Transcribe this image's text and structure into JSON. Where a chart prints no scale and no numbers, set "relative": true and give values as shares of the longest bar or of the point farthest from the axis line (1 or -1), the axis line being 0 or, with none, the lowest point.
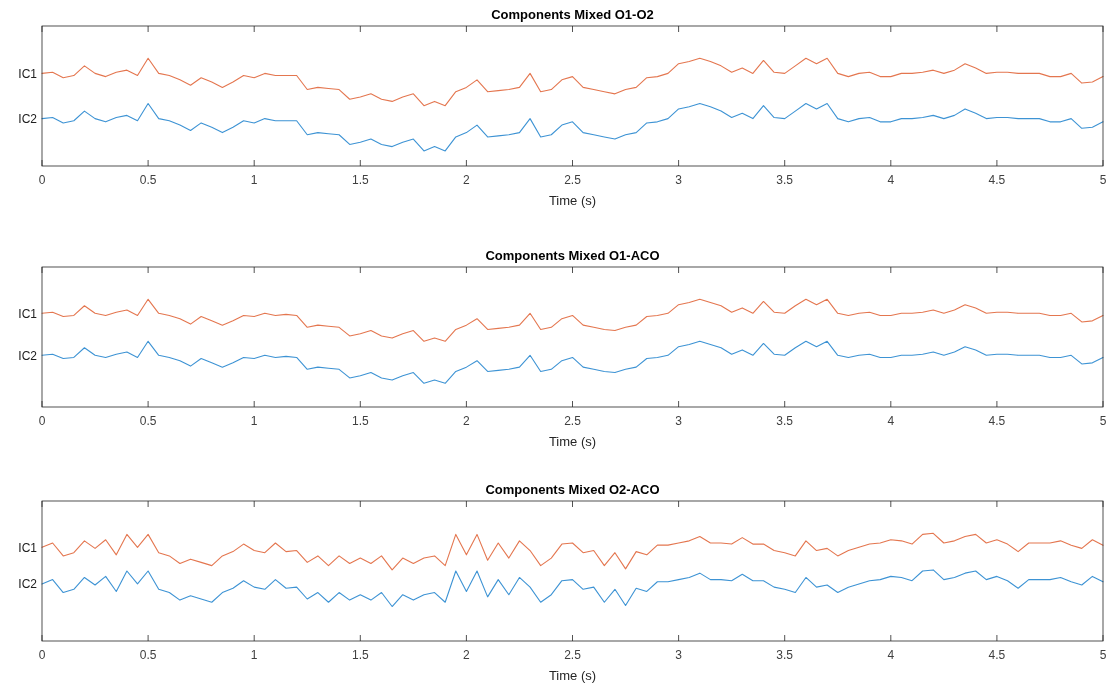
{
  "chart_data": [
    {
      "type": "line",
      "title": "Components Mixed O1-O2",
      "xlabel": "Time (s)",
      "xlim": [
        0,
        5
      ],
      "xticks": [
        0,
        0.5,
        1,
        1.5,
        2,
        2.5,
        3,
        3.5,
        4,
        4.5,
        5
      ],
      "relative": true,
      "x": [
        0,
        0.05,
        0.1,
        0.15,
        0.2,
        0.25,
        0.3,
        0.35,
        0.4,
        0.45,
        0.5,
        0.55,
        0.6,
        0.65,
        0.7,
        0.75,
        0.8,
        0.85,
        0.9,
        0.95,
        1,
        1.05,
        1.1,
        1.15,
        1.2,
        1.25,
        1.3,
        1.35,
        1.4,
        1.45,
        1.5,
        1.55,
        1.6,
        1.65,
        1.7,
        1.75,
        1.8,
        1.85,
        1.9,
        1.95,
        2,
        2.05,
        2.1,
        2.15,
        2.2,
        2.25,
        2.3,
        2.35,
        2.4,
        2.45,
        2.5,
        2.55,
        2.6,
        2.65,
        2.7,
        2.75,
        2.8,
        2.85,
        2.9,
        2.95,
        3,
        3.05,
        3.1,
        3.15,
        3.2,
        3.25,
        3.3,
        3.35,
        3.4,
        3.45,
        3.5,
        3.55,
        3.6,
        3.65,
        3.7,
        3.75,
        3.8,
        3.85,
        3.9,
        3.95,
        4,
        4.05,
        4.1,
        4.15,
        4.2,
        4.25,
        4.3,
        4.35,
        4.4,
        4.45,
        4.5,
        4.55,
        4.6,
        4.65,
        4.7,
        4.75,
        4.8,
        4.85,
        4.9,
        4.95,
        5
      ],
      "series": [
        {
          "name": "IC1",
          "color": "#e4764f",
          "values": [
            0.86,
            0.87,
            0.82,
            0.84,
            0.93,
            0.86,
            0.83,
            0.87,
            0.89,
            0.84,
            1.0,
            0.86,
            0.84,
            0.8,
            0.75,
            0.82,
            0.78,
            0.73,
            0.78,
            0.84,
            0.82,
            0.86,
            0.84,
            0.84,
            0.84,
            0.71,
            0.73,
            0.72,
            0.71,
            0.62,
            0.64,
            0.67,
            0.62,
            0.6,
            0.64,
            0.67,
            0.56,
            0.6,
            0.56,
            0.69,
            0.73,
            0.8,
            0.69,
            0.7,
            0.71,
            0.73,
            0.86,
            0.69,
            0.71,
            0.8,
            0.83,
            0.73,
            0.71,
            0.69,
            0.67,
            0.71,
            0.73,
            0.82,
            0.83,
            0.86,
            0.95,
            0.97,
            1.0,
            0.97,
            0.93,
            0.87,
            0.91,
            0.86,
            0.98,
            0.87,
            0.86,
            0.93,
            1.0,
            0.95,
            1.0,
            0.86,
            0.83,
            0.86,
            0.87,
            0.83,
            0.83,
            0.86,
            0.86,
            0.87,
            0.89,
            0.86,
            0.89,
            0.95,
            0.91,
            0.86,
            0.87,
            0.87,
            0.86,
            0.86,
            0.86,
            0.83,
            0.83,
            0.86,
            0.77,
            0.78,
            0.83
          ]
        },
        {
          "name": "IC2",
          "color": "#3d93d4",
          "values": [
            0.44,
            0.45,
            0.4,
            0.42,
            0.51,
            0.44,
            0.41,
            0.45,
            0.47,
            0.42,
            0.58,
            0.44,
            0.42,
            0.38,
            0.33,
            0.4,
            0.36,
            0.31,
            0.36,
            0.42,
            0.4,
            0.44,
            0.42,
            0.42,
            0.42,
            0.29,
            0.31,
            0.3,
            0.29,
            0.2,
            0.22,
            0.25,
            0.2,
            0.18,
            0.22,
            0.25,
            0.14,
            0.18,
            0.14,
            0.27,
            0.31,
            0.38,
            0.27,
            0.28,
            0.29,
            0.31,
            0.44,
            0.27,
            0.29,
            0.38,
            0.41,
            0.31,
            0.29,
            0.27,
            0.25,
            0.29,
            0.31,
            0.4,
            0.41,
            0.44,
            0.53,
            0.55,
            0.58,
            0.55,
            0.51,
            0.45,
            0.49,
            0.44,
            0.56,
            0.45,
            0.44,
            0.51,
            0.58,
            0.53,
            0.58,
            0.44,
            0.41,
            0.44,
            0.45,
            0.41,
            0.41,
            0.44,
            0.44,
            0.45,
            0.47,
            0.44,
            0.47,
            0.53,
            0.49,
            0.44,
            0.45,
            0.45,
            0.44,
            0.44,
            0.44,
            0.41,
            0.41,
            0.44,
            0.35,
            0.36,
            0.41
          ]
        }
      ]
    },
    {
      "type": "line",
      "title": "Components Mixed O1-ACO",
      "xlabel": "Time (s)",
      "xlim": [
        0,
        5
      ],
      "xticks": [
        0,
        0.5,
        1,
        1.5,
        2,
        2.5,
        3,
        3.5,
        4,
        4.5,
        5
      ],
      "relative": true,
      "x": [
        0,
        0.05,
        0.1,
        0.15,
        0.2,
        0.25,
        0.3,
        0.35,
        0.4,
        0.45,
        0.5,
        0.55,
        0.6,
        0.65,
        0.7,
        0.75,
        0.8,
        0.85,
        0.9,
        0.95,
        1,
        1.05,
        1.1,
        1.15,
        1.2,
        1.25,
        1.3,
        1.35,
        1.4,
        1.45,
        1.5,
        1.55,
        1.6,
        1.65,
        1.7,
        1.75,
        1.8,
        1.85,
        1.9,
        1.95,
        2,
        2.05,
        2.1,
        2.15,
        2.2,
        2.25,
        2.3,
        2.35,
        2.4,
        2.45,
        2.5,
        2.55,
        2.6,
        2.65,
        2.7,
        2.75,
        2.8,
        2.85,
        2.9,
        2.95,
        3,
        3.05,
        3.1,
        3.15,
        3.2,
        3.25,
        3.3,
        3.35,
        3.4,
        3.45,
        3.5,
        3.55,
        3.6,
        3.65,
        3.7,
        3.75,
        3.8,
        3.85,
        3.9,
        3.95,
        4,
        4.05,
        4.1,
        4.15,
        4.2,
        4.25,
        4.3,
        4.35,
        4.4,
        4.45,
        4.5,
        4.55,
        4.6,
        4.65,
        4.7,
        4.75,
        4.8,
        4.85,
        4.9,
        4.95,
        5
      ],
      "series": [
        {
          "name": "IC1",
          "color": "#e4764f",
          "values": [
            0.87,
            0.88,
            0.84,
            0.85,
            0.94,
            0.87,
            0.85,
            0.88,
            0.9,
            0.85,
            1.0,
            0.87,
            0.85,
            0.82,
            0.77,
            0.84,
            0.8,
            0.76,
            0.8,
            0.85,
            0.84,
            0.87,
            0.85,
            0.86,
            0.85,
            0.74,
            0.76,
            0.75,
            0.74,
            0.66,
            0.68,
            0.71,
            0.66,
            0.64,
            0.68,
            0.71,
            0.61,
            0.64,
            0.61,
            0.72,
            0.76,
            0.82,
            0.72,
            0.73,
            0.74,
            0.76,
            0.87,
            0.72,
            0.74,
            0.82,
            0.85,
            0.76,
            0.74,
            0.72,
            0.71,
            0.74,
            0.76,
            0.84,
            0.85,
            0.87,
            0.95,
            0.97,
            1.0,
            0.97,
            0.94,
            0.88,
            0.92,
            0.87,
            0.98,
            0.88,
            0.87,
            0.94,
            1.0,
            0.95,
            1.0,
            0.87,
            0.85,
            0.87,
            0.88,
            0.85,
            0.85,
            0.87,
            0.87,
            0.88,
            0.9,
            0.87,
            0.9,
            0.95,
            0.92,
            0.87,
            0.88,
            0.88,
            0.87,
            0.87,
            0.87,
            0.85,
            0.85,
            0.87,
            0.79,
            0.8,
            0.85
          ]
        },
        {
          "name": "IC2",
          "color": "#3d93d4",
          "values": [
            0.48,
            0.49,
            0.45,
            0.46,
            0.55,
            0.48,
            0.46,
            0.49,
            0.51,
            0.46,
            0.61,
            0.48,
            0.46,
            0.43,
            0.38,
            0.45,
            0.41,
            0.37,
            0.41,
            0.46,
            0.45,
            0.48,
            0.46,
            0.47,
            0.46,
            0.35,
            0.37,
            0.36,
            0.35,
            0.27,
            0.29,
            0.32,
            0.27,
            0.25,
            0.29,
            0.32,
            0.22,
            0.25,
            0.22,
            0.33,
            0.37,
            0.43,
            0.33,
            0.34,
            0.35,
            0.37,
            0.48,
            0.33,
            0.35,
            0.43,
            0.46,
            0.37,
            0.35,
            0.33,
            0.32,
            0.35,
            0.37,
            0.45,
            0.46,
            0.48,
            0.56,
            0.58,
            0.61,
            0.58,
            0.55,
            0.49,
            0.53,
            0.48,
            0.59,
            0.49,
            0.48,
            0.55,
            0.61,
            0.56,
            0.61,
            0.48,
            0.46,
            0.48,
            0.49,
            0.46,
            0.46,
            0.48,
            0.48,
            0.49,
            0.51,
            0.48,
            0.51,
            0.56,
            0.53,
            0.48,
            0.49,
            0.49,
            0.48,
            0.48,
            0.48,
            0.46,
            0.46,
            0.48,
            0.4,
            0.41,
            0.46
          ]
        }
      ]
    },
    {
      "type": "line",
      "title": "Components Mixed O2-ACO",
      "xlabel": "Time (s)",
      "xlim": [
        0,
        5
      ],
      "xticks": [
        0,
        0.5,
        1,
        1.5,
        2,
        2.5,
        3,
        3.5,
        4,
        4.5,
        5
      ],
      "relative": true,
      "x": [
        0,
        0.05,
        0.1,
        0.15,
        0.2,
        0.25,
        0.3,
        0.35,
        0.4,
        0.45,
        0.5,
        0.55,
        0.6,
        0.65,
        0.7,
        0.75,
        0.8,
        0.85,
        0.9,
        0.95,
        1,
        1.05,
        1.1,
        1.15,
        1.2,
        1.25,
        1.3,
        1.35,
        1.4,
        1.45,
        1.5,
        1.55,
        1.6,
        1.65,
        1.7,
        1.75,
        1.8,
        1.85,
        1.9,
        1.95,
        2,
        2.05,
        2.1,
        2.15,
        2.2,
        2.25,
        2.3,
        2.35,
        2.4,
        2.45,
        2.5,
        2.55,
        2.6,
        2.65,
        2.7,
        2.75,
        2.8,
        2.85,
        2.9,
        2.95,
        3,
        3.05,
        3.1,
        3.15,
        3.2,
        3.25,
        3.3,
        3.35,
        3.4,
        3.45,
        3.5,
        3.55,
        3.6,
        3.65,
        3.7,
        3.75,
        3.8,
        3.85,
        3.9,
        3.95,
        4,
        4.05,
        4.1,
        4.15,
        4.2,
        4.25,
        4.3,
        4.35,
        4.4,
        4.45,
        4.5,
        4.55,
        4.6,
        4.65,
        4.7,
        4.75,
        4.8,
        4.85,
        4.9,
        4.95,
        5
      ],
      "series": [
        {
          "name": "IC1",
          "color": "#e4764f",
          "values": [
            0.87,
            0.91,
            0.79,
            0.82,
            0.93,
            0.86,
            0.94,
            0.8,
            0.99,
            0.87,
            0.99,
            0.82,
            0.79,
            0.72,
            0.76,
            0.73,
            0.7,
            0.79,
            0.83,
            0.9,
            0.84,
            0.82,
            0.91,
            0.83,
            0.84,
            0.73,
            0.79,
            0.7,
            0.79,
            0.72,
            0.77,
            0.72,
            0.79,
            0.66,
            0.77,
            0.72,
            0.77,
            0.79,
            0.7,
            0.99,
            0.8,
            0.99,
            0.75,
            0.91,
            0.77,
            0.93,
            0.84,
            0.7,
            0.77,
            0.9,
            0.91,
            0.82,
            0.84,
            0.7,
            0.82,
            0.67,
            0.83,
            0.8,
            0.89,
            0.89,
            0.91,
            0.93,
            0.97,
            0.91,
            0.91,
            0.9,
            0.96,
            0.9,
            0.9,
            0.84,
            0.82,
            0.79,
            0.93,
            0.84,
            0.86,
            0.79,
            0.84,
            0.87,
            0.9,
            0.91,
            0.94,
            0.93,
            0.9,
            0.99,
            1.0,
            0.91,
            0.93,
            0.97,
            0.99,
            0.91,
            0.94,
            0.9,
            0.83,
            0.91,
            0.91,
            0.91,
            0.93,
            0.89,
            0.86,
            0.94,
            0.89
          ]
        },
        {
          "name": "IC2",
          "color": "#3d93d4",
          "values": [
            0.53,
            0.57,
            0.45,
            0.48,
            0.59,
            0.52,
            0.6,
            0.46,
            0.65,
            0.53,
            0.65,
            0.48,
            0.45,
            0.38,
            0.42,
            0.39,
            0.36,
            0.45,
            0.49,
            0.56,
            0.5,
            0.48,
            0.57,
            0.49,
            0.5,
            0.39,
            0.45,
            0.36,
            0.45,
            0.38,
            0.43,
            0.38,
            0.45,
            0.32,
            0.43,
            0.38,
            0.43,
            0.45,
            0.36,
            0.65,
            0.46,
            0.65,
            0.41,
            0.57,
            0.43,
            0.59,
            0.5,
            0.36,
            0.43,
            0.56,
            0.57,
            0.48,
            0.5,
            0.36,
            0.48,
            0.33,
            0.49,
            0.46,
            0.55,
            0.55,
            0.57,
            0.59,
            0.63,
            0.57,
            0.57,
            0.56,
            0.62,
            0.56,
            0.56,
            0.5,
            0.48,
            0.45,
            0.59,
            0.5,
            0.52,
            0.45,
            0.5,
            0.53,
            0.56,
            0.57,
            0.6,
            0.59,
            0.56,
            0.65,
            0.66,
            0.57,
            0.59,
            0.63,
            0.65,
            0.57,
            0.6,
            0.56,
            0.49,
            0.57,
            0.57,
            0.57,
            0.59,
            0.55,
            0.52,
            0.6,
            0.55
          ]
        }
      ]
    }
  ]
}
